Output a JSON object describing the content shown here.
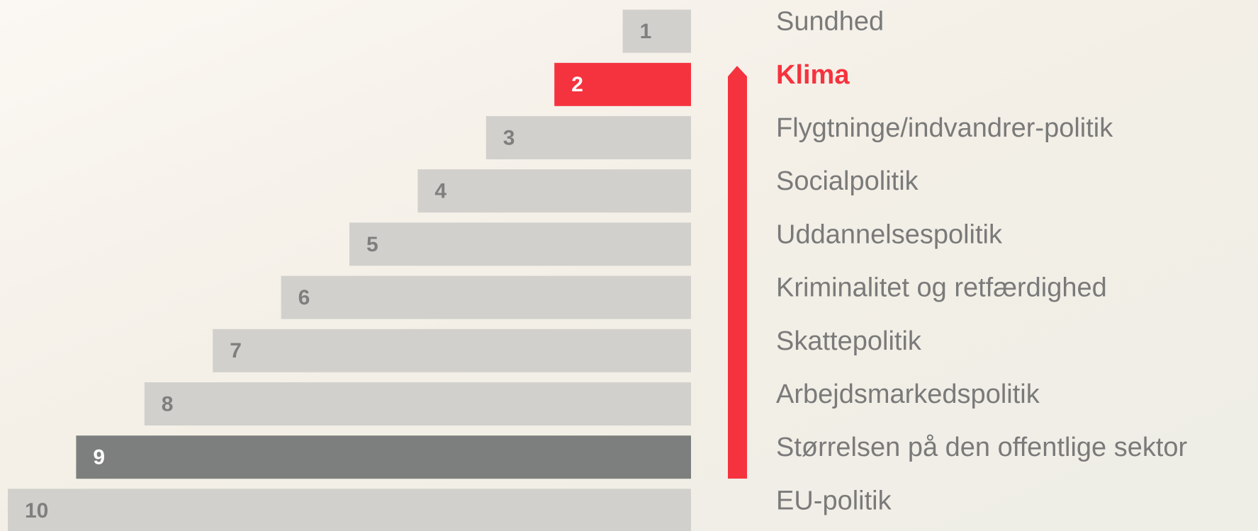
{
  "chart_data": {
    "type": "bar",
    "categories": [
      "Sundhed",
      "Klima",
      "Flygtninge/indvandrer-politik",
      "Socialpolitik",
      "Uddannelsespolitik",
      "Kriminalitet og retfærdighed",
      "Skattepolitik",
      "Arbejdsmarkedspolitik",
      "Størrelsen på den offentlige sektor",
      "EU-politik"
    ],
    "values": [
      1,
      2,
      3,
      4,
      5,
      6,
      7,
      8,
      9,
      10
    ],
    "colors": [
      "#d1d0cc",
      "#f5333f",
      "#d1d0cc",
      "#d1d0cc",
      "#d1d0cc",
      "#d1d0cc",
      "#d1d0cc",
      "#d1d0cc",
      "#7c7f7e",
      "#d1d0cc"
    ],
    "value_label_colors": [
      "#7f7f7f",
      "#ffffff",
      "#7f7f7f",
      "#7f7f7f",
      "#7f7f7f",
      "#7f7f7f",
      "#7f7f7f",
      "#7f7f7f",
      "#ffffff",
      "#7f7f7f"
    ],
    "category_label_colors": [
      "#7a7a7a",
      "#f5333f",
      "#7a7a7a",
      "#7a7a7a",
      "#7a7a7a",
      "#7a7a7a",
      "#7a7a7a",
      "#7a7a7a",
      "#7a7a7a",
      "#7a7a7a"
    ]
  }
}
